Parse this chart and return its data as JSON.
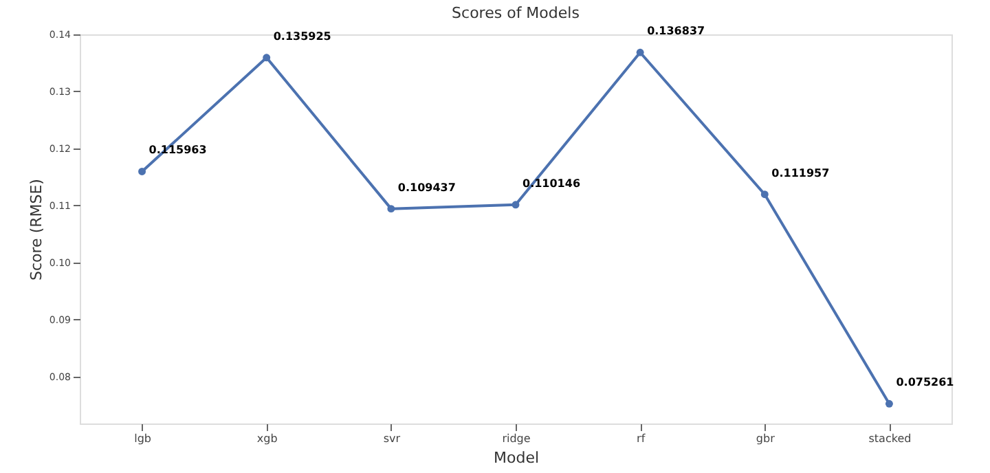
{
  "chart_data": {
    "type": "line",
    "title": "Scores of Models",
    "xlabel": "Model",
    "ylabel": "Score (RMSE)",
    "categories": [
      "lgb",
      "xgb",
      "svr",
      "ridge",
      "rf",
      "gbr",
      "stacked"
    ],
    "series": [
      {
        "color": "#4c72b0",
        "values": [
          0.115963,
          0.135925,
          0.109437,
          0.110146,
          0.136837,
          0.111957,
          0.075261
        ]
      }
    ],
    "ylim": [
      0.0718,
      0.14
    ],
    "yticks": [
      {
        "value": 0.08,
        "label": "0.08"
      },
      {
        "value": 0.09,
        "label": "0.09"
      },
      {
        "value": 0.1,
        "label": "0.10"
      },
      {
        "value": 0.11,
        "label": "0.11"
      },
      {
        "value": 0.12,
        "label": "0.12"
      },
      {
        "value": 0.13,
        "label": "0.13"
      },
      {
        "value": 0.14,
        "label": "0.14"
      }
    ],
    "data_labels": true,
    "marker": "circle",
    "line_style": "solid",
    "grid": false
  }
}
